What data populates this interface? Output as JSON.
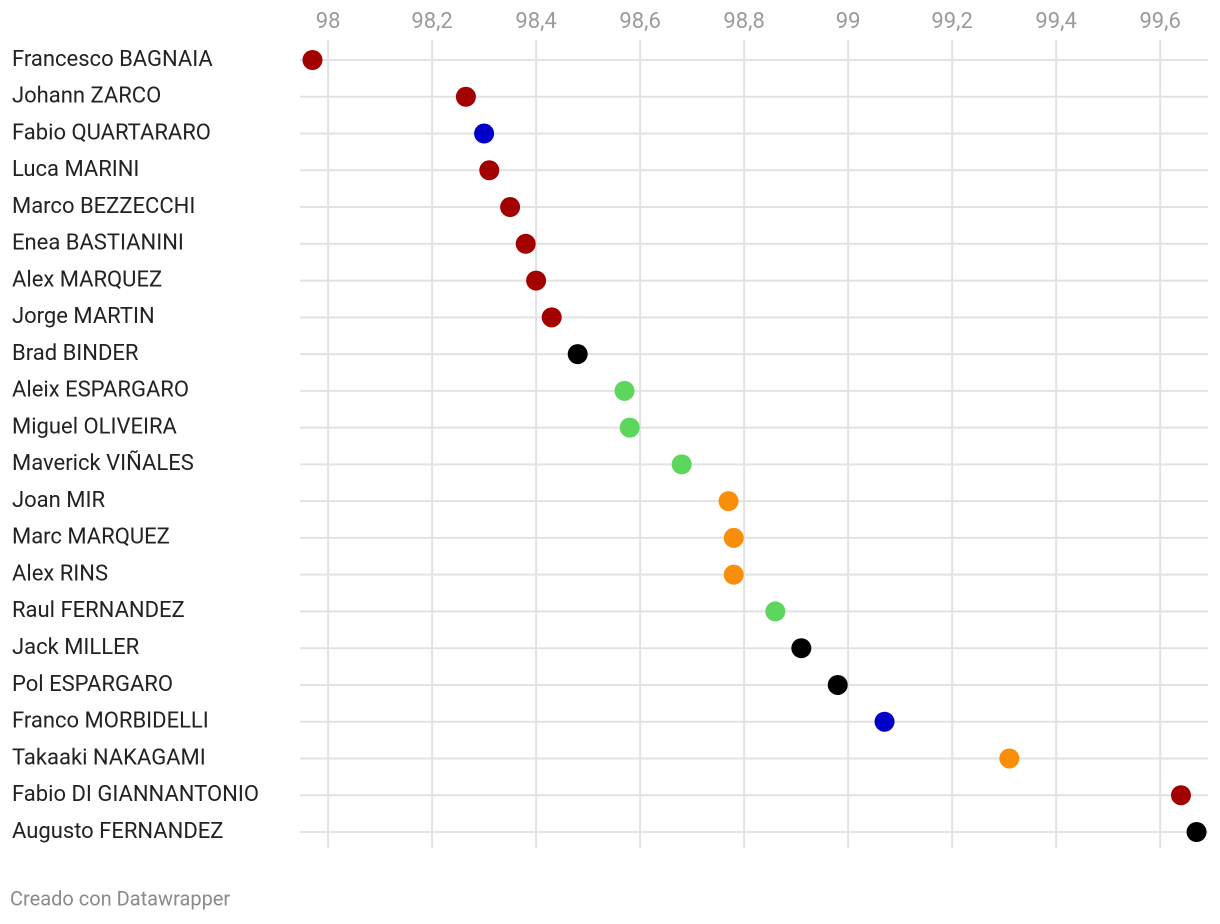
{
  "chart_data": {
    "type": "dot",
    "categories": [
      "Francesco BAGNAIA",
      "Johann ZARCO",
      "Fabio QUARTARARO",
      "Luca MARINI",
      "Marco BEZZECCHI",
      "Enea BASTIANINI",
      "Alex MARQUEZ",
      "Jorge MARTIN",
      "Brad BINDER",
      "Aleix ESPARGARO",
      "Miguel OLIVEIRA",
      "Maverick VIÑALES",
      "Joan MIR",
      "Marc MARQUEZ",
      "Alex RINS",
      "Raul FERNANDEZ",
      "Jack MILLER",
      "Pol ESPARGARO",
      "Franco MORBIDELLI",
      "Takaaki NAKAGAMI",
      "Fabio DI GIANNANTONIO",
      "Augusto FERNANDEZ"
    ],
    "values": [
      97.97,
      98.265,
      98.3,
      98.31,
      98.35,
      98.38,
      98.4,
      98.43,
      98.48,
      98.57,
      98.58,
      98.68,
      98.77,
      98.78,
      98.78,
      98.86,
      98.91,
      98.98,
      99.07,
      99.31,
      99.64,
      99.67
    ],
    "colors": [
      "#a30000",
      "#a30000",
      "#0000c8",
      "#a30000",
      "#a30000",
      "#a30000",
      "#a30000",
      "#a30000",
      "#000000",
      "#5cd65c",
      "#5cd65c",
      "#5cd65c",
      "#f98e0b",
      "#f98e0b",
      "#f98e0b",
      "#5cd65c",
      "#000000",
      "#000000",
      "#0000c8",
      "#f98e0b",
      "#a30000",
      "#000000"
    ],
    "xlim": [
      97.946,
      99.692
    ],
    "xticks": [
      98,
      {
        "value": 98.2,
        "label": "98,2"
      },
      {
        "value": 98.4,
        "label": "98,4"
      },
      {
        "value": 98.6,
        "label": "98,6"
      },
      {
        "value": 98.8,
        "label": "98,8"
      },
      99,
      {
        "value": 99.2,
        "label": "99,2"
      },
      {
        "value": 99.4,
        "label": "99,4"
      },
      {
        "value": 99.6,
        "label": "99,6"
      }
    ],
    "grid": true,
    "source": "Creado con Datawrapper"
  }
}
